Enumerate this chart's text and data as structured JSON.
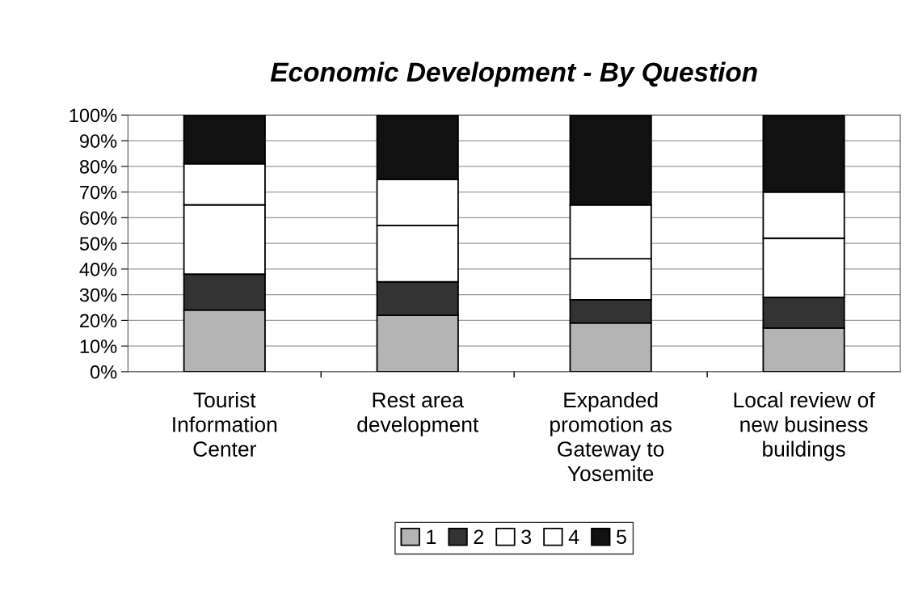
{
  "chart_data": {
    "type": "bar",
    "stacked": true,
    "title": "Economic Development - By Question",
    "categories": [
      "Tourist\nInformation\nCenter",
      "Rest area\ndevelopment",
      "Expanded\npromotion as\nGateway to\nYosemite",
      "Local review of\nnew business\nbuildings"
    ],
    "series": [
      {
        "name": "1",
        "color": "#b4b4b4",
        "values": [
          24,
          22,
          19,
          17
        ]
      },
      {
        "name": "2",
        "color": "#333333",
        "values": [
          14,
          13,
          9,
          12
        ]
      },
      {
        "name": "3",
        "color": "#ffffff",
        "values": [
          27,
          22,
          16,
          23
        ]
      },
      {
        "name": "4",
        "color": "#ffffff",
        "values": [
          16,
          18,
          21,
          18
        ]
      },
      {
        "name": "5",
        "color": "#111111",
        "values": [
          19,
          25,
          35,
          30
        ]
      }
    ],
    "ylim": [
      0,
      100
    ],
    "yticks": [
      {
        "value": 0,
        "label": "0%"
      },
      {
        "value": 10,
        "label": "10%"
      },
      {
        "value": 20,
        "label": "20%"
      },
      {
        "value": 30,
        "label": "30%"
      },
      {
        "value": 40,
        "label": "40%"
      },
      {
        "value": 50,
        "label": "50%"
      },
      {
        "value": 60,
        "label": "60%"
      },
      {
        "value": 70,
        "label": "70%"
      },
      {
        "value": 80,
        "label": "80%"
      },
      {
        "value": 90,
        "label": "90%"
      },
      {
        "value": 100,
        "label": "100%"
      }
    ],
    "grid": "y",
    "legend": "bottom"
  }
}
